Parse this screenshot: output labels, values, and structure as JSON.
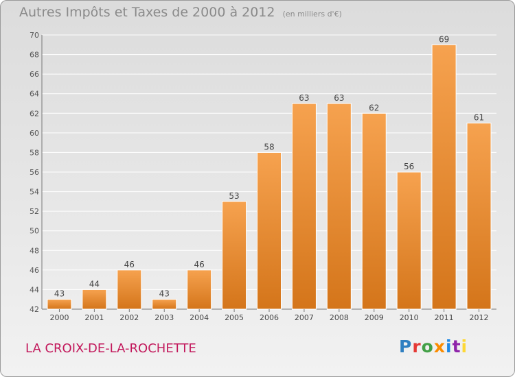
{
  "header": {
    "title": "Autres Impôts et Taxes de 2000 à 2012",
    "unit": "(en milliers d'€)"
  },
  "footer": {
    "commune": "LA CROIX-DE-LA-ROCHETTE",
    "logo_text": "Proxiti"
  },
  "colors": {
    "bar_top": "#f6a24f",
    "bar_bottom": "#d4751a",
    "commune": "#c2185b",
    "grid": "#ffffff"
  },
  "chart_data": {
    "type": "bar",
    "title": "Autres Impôts et Taxes de 2000 à 2012",
    "subtitle": "(en milliers d'€)",
    "xlabel": "",
    "ylabel": "",
    "categories": [
      "2000",
      "2001",
      "2002",
      "2003",
      "2004",
      "2005",
      "2006",
      "2007",
      "2008",
      "2009",
      "2010",
      "2011",
      "2012"
    ],
    "values": [
      43,
      44,
      46,
      43,
      46,
      53,
      58,
      63,
      63,
      62,
      56,
      69,
      61
    ],
    "ylim": [
      42,
      70
    ],
    "yticks": [
      42,
      44,
      46,
      48,
      50,
      52,
      54,
      56,
      58,
      60,
      62,
      64,
      66,
      68,
      70
    ],
    "grid": true,
    "data_labels": true
  }
}
